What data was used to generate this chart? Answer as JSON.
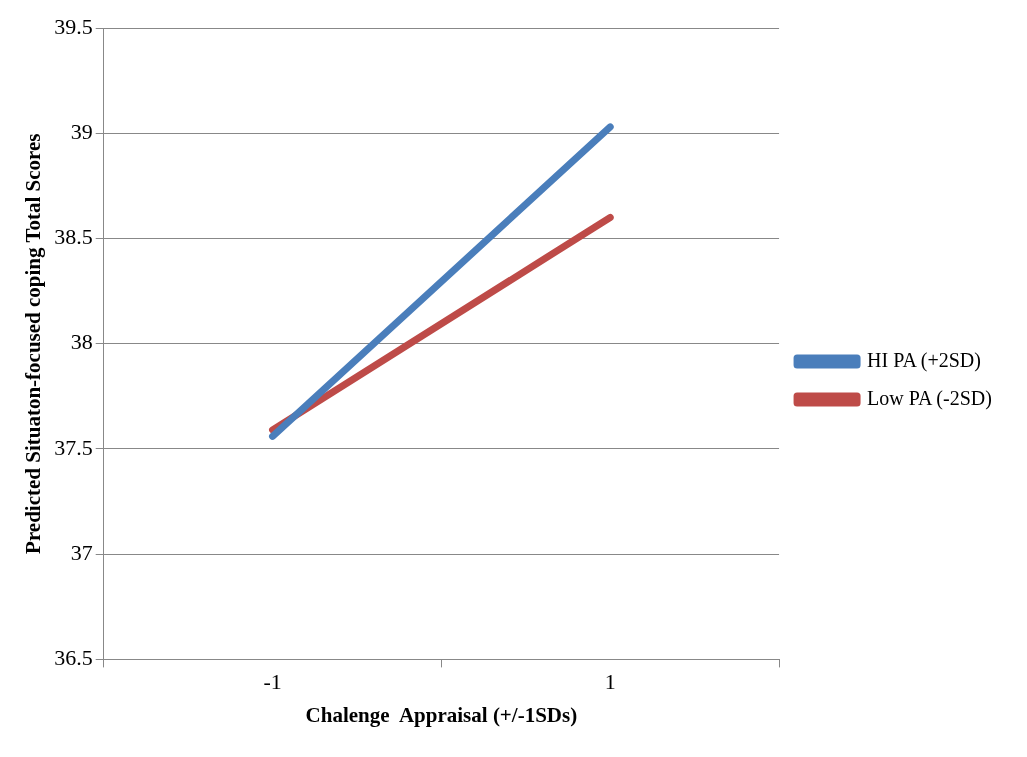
{
  "chart_data": {
    "type": "line",
    "xlabel": "Chalenge  Appraisal (+/-1SDs)",
    "ylabel": "Predicted Situaton-focused coping Total Scores",
    "categories": [
      "-1",
      "1"
    ],
    "series": [
      {
        "name": "HI PA (+2SD)",
        "color": "#4a7ebb",
        "values": [
          37.56,
          39.03
        ]
      },
      {
        "name": "Low PA (-2SD)",
        "color": "#be4b48",
        "values": [
          37.59,
          38.6
        ]
      }
    ],
    "ylim": [
      36.5,
      39.5
    ],
    "yticks": [
      36.5,
      37,
      37.5,
      38,
      38.5,
      39,
      39.5
    ],
    "grid": "y",
    "legend": "right",
    "marker": "none",
    "line_style": "solid"
  }
}
